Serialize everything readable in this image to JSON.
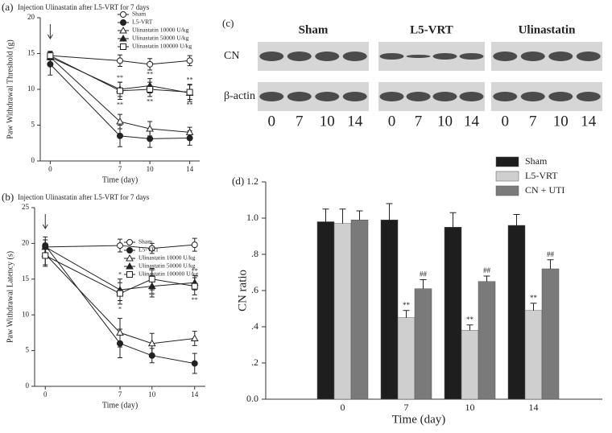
{
  "chart_data": [
    {
      "type": "line",
      "panel": "(a)",
      "title": "Injection Ulinastatin after L5-VRT for 7 days",
      "y_label": "Paw Withdrawal Threshold (g)",
      "x_label": "Time (day)",
      "x": [
        0,
        7,
        10,
        14
      ],
      "xlim": [
        -1,
        15
      ],
      "xticks": [
        0,
        7,
        10,
        14
      ],
      "ylim": [
        0,
        20
      ],
      "yticks": [
        0,
        5,
        10,
        15,
        20
      ],
      "series": [
        {
          "name": "Sham",
          "color": "#222",
          "marker": "circle",
          "filled": false,
          "values": [
            14.7,
            14.0,
            13.5,
            14.0
          ],
          "errors": [
            0.6,
            0.8,
            0.8,
            0.7
          ]
        },
        {
          "name": "L5-VRT",
          "color": "#222",
          "marker": "circle",
          "filled": true,
          "values": [
            13.5,
            3.5,
            3.1,
            3.2
          ],
          "errors": [
            1.5,
            1.5,
            1.2,
            1.0
          ]
        },
        {
          "name": "Ulinastatin  10000 U/kg",
          "color": "#222",
          "marker": "triangle",
          "filled": false,
          "values": [
            14.5,
            5.5,
            4.5,
            4.0
          ],
          "errors": [
            0.8,
            1.0,
            1.0,
            0.7
          ]
        },
        {
          "name": "Ulinastatin  50000 U/kg",
          "color": "#222",
          "marker": "triangle",
          "filled": true,
          "values": [
            14.5,
            10.0,
            10.5,
            9.5
          ],
          "errors": [
            0.7,
            1.0,
            1.0,
            1.2
          ],
          "marks_above": [
            "",
            "**",
            "**",
            "**"
          ]
        },
        {
          "name": "Ulinastatin 100000 U/kg",
          "color": "#222",
          "marker": "square",
          "filled": false,
          "values": [
            14.7,
            9.8,
            10.0,
            9.6
          ],
          "errors": [
            0.6,
            1.2,
            1.0,
            1.0
          ],
          "marks_below": [
            "",
            "**",
            "**",
            "**"
          ]
        }
      ]
    },
    {
      "type": "line",
      "panel": "(b)",
      "title": "Injection Ulinastatin after L5-VRT for 7 days",
      "y_label": "Paw Withdrawal Latency (s)",
      "x_label": "Time (day)",
      "x": [
        0,
        7,
        10,
        14
      ],
      "xlim": [
        -1,
        15
      ],
      "xticks": [
        0,
        7,
        10,
        14
      ],
      "ylim": [
        0,
        25
      ],
      "yticks": [
        0,
        5,
        10,
        15,
        20,
        25
      ],
      "series": [
        {
          "name": "Sham",
          "color": "#222",
          "marker": "circle",
          "filled": false,
          "values": [
            19.5,
            19.7,
            19.3,
            19.8
          ],
          "errors": [
            1.0,
            0.9,
            0.7,
            0.9
          ]
        },
        {
          "name": "L5-VRT",
          "color": "#222",
          "marker": "circle",
          "filled": true,
          "values": [
            19.7,
            6.0,
            4.3,
            3.2
          ],
          "errors": [
            1.2,
            2.0,
            1.0,
            1.4
          ]
        },
        {
          "name": "Ulinastatin  10000 U/kg",
          "color": "#222",
          "marker": "triangle",
          "filled": false,
          "values": [
            18.5,
            7.5,
            6.0,
            6.7
          ],
          "errors": [
            1.5,
            2.0,
            1.4,
            1.0
          ]
        },
        {
          "name": "Ulinastatin  50000 U/kg",
          "color": "#222",
          "marker": "triangle",
          "filled": true,
          "values": [
            19.5,
            13.5,
            14.0,
            14.5
          ],
          "errors": [
            1.0,
            1.5,
            1.5,
            1.0
          ],
          "marks_above": [
            "",
            "*",
            "**",
            "**"
          ]
        },
        {
          "name": "Ulinastatin 100000 U/kg",
          "color": "#222",
          "marker": "square",
          "filled": false,
          "values": [
            18.3,
            13.0,
            15.0,
            14.0
          ],
          "errors": [
            1.5,
            1.5,
            1.5,
            1.2
          ],
          "marks_below": [
            "",
            "*",
            "**",
            "**"
          ]
        }
      ]
    },
    {
      "type": "bar",
      "panel": "(d)",
      "y_label": "CN ratio",
      "x_label": "Time (day)",
      "categories": [
        "0",
        "7",
        "10",
        "14"
      ],
      "ylim": [
        0,
        1.2
      ],
      "yticks": [
        {
          "value": 0,
          "label": "0.0"
        },
        {
          "value": 0.2,
          "label": ".2"
        },
        {
          "value": 0.4,
          "label": ".4"
        },
        {
          "value": 0.6,
          "label": ".6"
        },
        {
          "value": 0.8,
          "label": ".8"
        },
        {
          "value": 1.0,
          "label": "1.0"
        },
        1.2
      ],
      "series": [
        {
          "name": "Sham",
          "color": "#1e1e1e",
          "values": [
            0.98,
            0.99,
            0.95,
            0.96
          ],
          "errors": [
            0.07,
            0.09,
            0.08,
            0.06
          ]
        },
        {
          "name": "L5-VRT",
          "color": "#cfcfcf",
          "values": [
            0.97,
            0.45,
            0.38,
            0.49
          ],
          "errors": [
            0.08,
            0.04,
            0.03,
            0.04
          ],
          "marks_above": [
            "",
            "**",
            "**",
            "**"
          ]
        },
        {
          "name": "CN + UTI",
          "color": "#7a7a7a",
          "values": [
            0.99,
            0.61,
            0.65,
            0.72
          ],
          "errors": [
            0.05,
            0.05,
            0.03,
            0.05
          ],
          "marks_above": [
            "",
            "##",
            "##",
            "##"
          ]
        }
      ]
    }
  ],
  "blot": {
    "panel": "(c)",
    "groups": [
      "Sham",
      "L5-VRT",
      "Ulinastatin"
    ],
    "rows": [
      "CN",
      "β-actin"
    ],
    "lanes": [
      "0",
      "7",
      "10",
      "14"
    ]
  }
}
